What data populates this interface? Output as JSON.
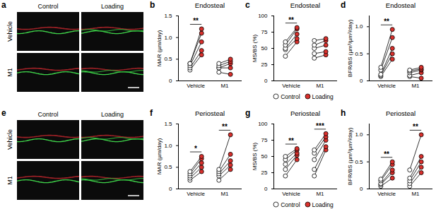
{
  "figure": {
    "image_panels": [
      {
        "panel": "a",
        "columns": [
          "Control",
          "Loading"
        ],
        "rows": [
          "Vehicle",
          "M1"
        ]
      },
      {
        "panel": "e",
        "columns": [
          "Control",
          "Loading"
        ],
        "rows": [
          "Vehicle",
          "M1"
        ]
      }
    ]
  },
  "chart_data": [
    {
      "type": "paired_dot",
      "panel": "b",
      "title": "Endosteal",
      "ylabel": "MAR (µm/day)",
      "categories": [
        "Vehicle",
        "M1"
      ],
      "series": [
        {
          "name": "Control",
          "color": "#ffffff",
          "marker": "circle",
          "values": [
            [
              0.25,
              0.3,
              0.35,
              0.4,
              0.4
            ],
            [
              0.2,
              0.3,
              0.3,
              0.35,
              0.4
            ]
          ]
        },
        {
          "name": "Loading",
          "color": "#d9302c",
          "marker": "circle",
          "values": [
            [
              0.6,
              0.7,
              0.9,
              1.1,
              1.2
            ],
            [
              0.15,
              0.3,
              0.4,
              0.45,
              0.5
            ]
          ]
        }
      ],
      "ylim": [
        0,
        1.5
      ],
      "yticks": [
        0,
        0.5,
        {
          "value": 1,
          "label": "1.0"
        },
        1.5
      ],
      "annotations": [
        {
          "category": "Vehicle",
          "text": "**"
        }
      ]
    },
    {
      "type": "paired_dot",
      "panel": "c",
      "title": "Endosteal",
      "ylabel": "MS/BS (%)",
      "categories": [
        "Vehicle",
        "M1"
      ],
      "series": [
        {
          "name": "Control",
          "color": "#ffffff",
          "marker": "circle",
          "values": [
            [
              38,
              48,
              50,
              55,
              60
            ],
            [
              35,
              42,
              50,
              55,
              62
            ]
          ]
        },
        {
          "name": "Loading",
          "color": "#d9302c",
          "marker": "circle",
          "values": [
            [
              60,
              65,
              72,
              80,
              82
            ],
            [
              40,
              45,
              55,
              62,
              65
            ]
          ]
        }
      ],
      "ylim": [
        0,
        100
      ],
      "yticks": [
        0,
        25,
        50,
        75,
        100
      ],
      "legend": "bottom",
      "annotations": [
        {
          "category": "Vehicle",
          "text": "**"
        }
      ]
    },
    {
      "type": "paired_dot",
      "panel": "d",
      "title": "Endosteal",
      "ylabel": "BFR/BS (µm³/µm²/day)",
      "categories": [
        "Vehicle",
        "M1"
      ],
      "series": [
        {
          "name": "Control",
          "color": "#ffffff",
          "marker": "circle",
          "values": [
            [
              0.08,
              0.1,
              0.12,
              0.2,
              0.25
            ],
            [
              0.08,
              0.1,
              0.15,
              0.18,
              0.2
            ]
          ]
        },
        {
          "name": "Loading",
          "color": "#d9302c",
          "marker": "circle",
          "values": [
            [
              0.4,
              0.5,
              0.6,
              0.8,
              0.95
            ],
            [
              0.05,
              0.15,
              0.2,
              0.22,
              0.25
            ]
          ]
        }
      ],
      "ylim": [
        0,
        1.2
      ],
      "yticks": [
        0,
        0.5,
        {
          "value": 1,
          "label": "1.0"
        }
      ],
      "annotations": [
        {
          "category": "Vehicle",
          "text": "**"
        }
      ]
    },
    {
      "type": "paired_dot",
      "panel": "f",
      "title": "Periosteal",
      "ylabel": "MAR (µm/day)",
      "categories": [
        "Vehicle",
        "M1"
      ],
      "series": [
        {
          "name": "Control",
          "color": "#ffffff",
          "marker": "circle",
          "values": [
            [
              0.2,
              0.25,
              0.3,
              0.35,
              0.4
            ],
            [
              0.2,
              0.3,
              0.35,
              0.4,
              0.45
            ]
          ]
        },
        {
          "name": "Loading",
          "color": "#d9302c",
          "marker": "circle",
          "values": [
            [
              0.4,
              0.5,
              0.6,
              0.7,
              0.75
            ],
            [
              0.45,
              0.55,
              0.65,
              0.8,
              1.25
            ]
          ]
        }
      ],
      "ylim": [
        0,
        1.5
      ],
      "yticks": [
        0,
        0.5,
        {
          "value": 1,
          "label": "1.0"
        },
        1.5
      ],
      "annotations": [
        {
          "category": "Vehicle",
          "text": "*"
        },
        {
          "category": "M1",
          "text": "**"
        }
      ]
    },
    {
      "type": "paired_dot",
      "panel": "g",
      "title": "Periosteal",
      "ylabel": "MS/BS (%)",
      "categories": [
        "Vehicle",
        "M1"
      ],
      "series": [
        {
          "name": "Control",
          "color": "#ffffff",
          "marker": "circle",
          "values": [
            [
              20,
              30,
              38,
              45,
              50
            ],
            [
              20,
              30,
              45,
              55,
              60
            ]
          ]
        },
        {
          "name": "Loading",
          "color": "#d9302c",
          "marker": "circle",
          "values": [
            [
              45,
              52,
              55,
              60,
              62
            ],
            [
              60,
              65,
              75,
              80,
              85
            ]
          ]
        }
      ],
      "ylim": [
        0,
        100
      ],
      "yticks": [
        0,
        25,
        50,
        75,
        100
      ],
      "legend": "bottom",
      "annotations": [
        {
          "category": "Vehicle",
          "text": "**"
        },
        {
          "category": "M1",
          "text": "***"
        }
      ]
    },
    {
      "type": "paired_dot",
      "panel": "h",
      "title": "Periosteal",
      "ylabel": "BFR/BS (µm³/µm²/day)",
      "categories": [
        "Vehicle",
        "M1"
      ],
      "series": [
        {
          "name": "Control",
          "color": "#ffffff",
          "marker": "circle",
          "values": [
            [
              0.05,
              0.08,
              0.1,
              0.15,
              0.18
            ],
            [
              0.05,
              0.1,
              0.15,
              0.2,
              0.35
            ]
          ]
        },
        {
          "name": "Loading",
          "color": "#d9302c",
          "marker": "circle",
          "values": [
            [
              0.2,
              0.3,
              0.35,
              0.45,
              0.5
            ],
            [
              0.3,
              0.4,
              0.5,
              0.6,
              1.0
            ]
          ]
        }
      ],
      "ylim": [
        0,
        1.2
      ],
      "yticks": [
        0,
        0.5,
        {
          "value": 1,
          "label": "1.0"
        }
      ],
      "annotations": [
        {
          "category": "Vehicle",
          "text": "**"
        },
        {
          "category": "M1",
          "text": "**"
        }
      ]
    }
  ]
}
